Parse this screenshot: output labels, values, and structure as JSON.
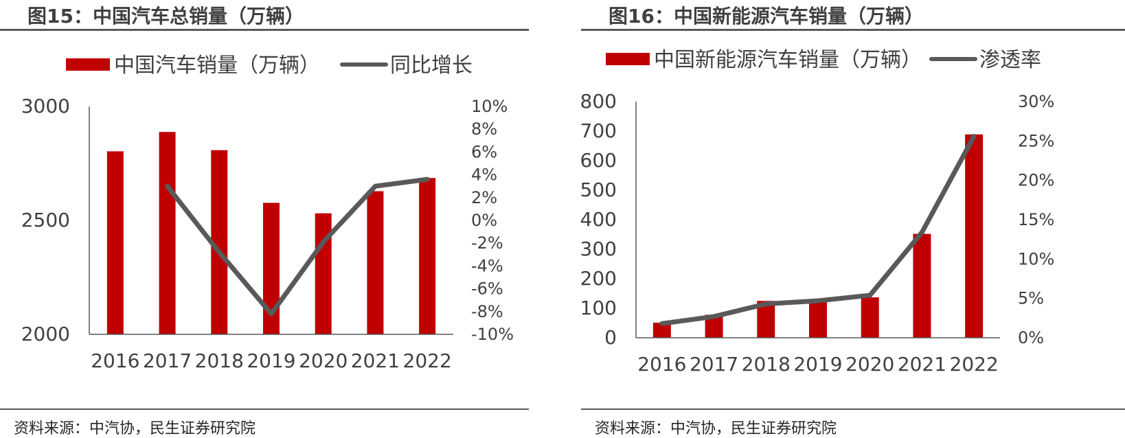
{
  "colors": {
    "bar": "#C00000",
    "line": "#595959",
    "rule": "#595959",
    "text": "#404040"
  },
  "left": {
    "title": "图15：中国汽车总销量（万辆）",
    "source": "资料来源：中汽协，民生证券研究院",
    "chart_data": {
      "type": "bar",
      "categories": [
        "2016",
        "2017",
        "2018",
        "2019",
        "2020",
        "2021",
        "2022"
      ],
      "series": [
        {
          "name": "中国汽车销量（万辆）",
          "type": "bar",
          "axis": "left",
          "values": [
            2803,
            2888,
            2808,
            2577,
            2531,
            2628,
            2686
          ]
        },
        {
          "name": "同比增长",
          "type": "line",
          "axis": "right",
          "values": [
            null,
            3.0,
            -2.8,
            -8.2,
            -1.9,
            3.0,
            3.6
          ]
        }
      ],
      "y_left": {
        "min": 2000,
        "max": 3000,
        "ticks": [
          "2000",
          "2500",
          "3000"
        ]
      },
      "y_right": {
        "min": -10,
        "max": 10,
        "ticks": [
          "-10%",
          "-8%",
          "-6%",
          "-4%",
          "-2%",
          "0%",
          "2%",
          "4%",
          "6%",
          "8%",
          "10%"
        ]
      },
      "legend": "top"
    }
  },
  "right": {
    "title": "图16：中国新能源汽车销量（万辆）",
    "source": "资料来源：中汽协，民生证券研究院",
    "chart_data": {
      "type": "bar",
      "categories": [
        "2016",
        "2017",
        "2018",
        "2019",
        "2020",
        "2021",
        "2022"
      ],
      "series": [
        {
          "name": "中国新能源汽车销量（万辆）",
          "type": "bar",
          "axis": "left",
          "values": [
            51,
            78,
            125,
            121,
            137,
            352,
            689
          ]
        },
        {
          "name": "渗透率",
          "type": "line",
          "axis": "right",
          "values": [
            1.8,
            2.7,
            4.3,
            4.7,
            5.4,
            13.4,
            25.6
          ]
        }
      ],
      "y_left": {
        "min": 0,
        "max": 800,
        "ticks": [
          "0",
          "100",
          "200",
          "300",
          "400",
          "500",
          "600",
          "700",
          "800"
        ]
      },
      "y_right": {
        "min": 0,
        "max": 30,
        "ticks": [
          "0%",
          "5%",
          "10%",
          "15%",
          "20%",
          "25%",
          "30%"
        ]
      },
      "legend": "top"
    }
  }
}
